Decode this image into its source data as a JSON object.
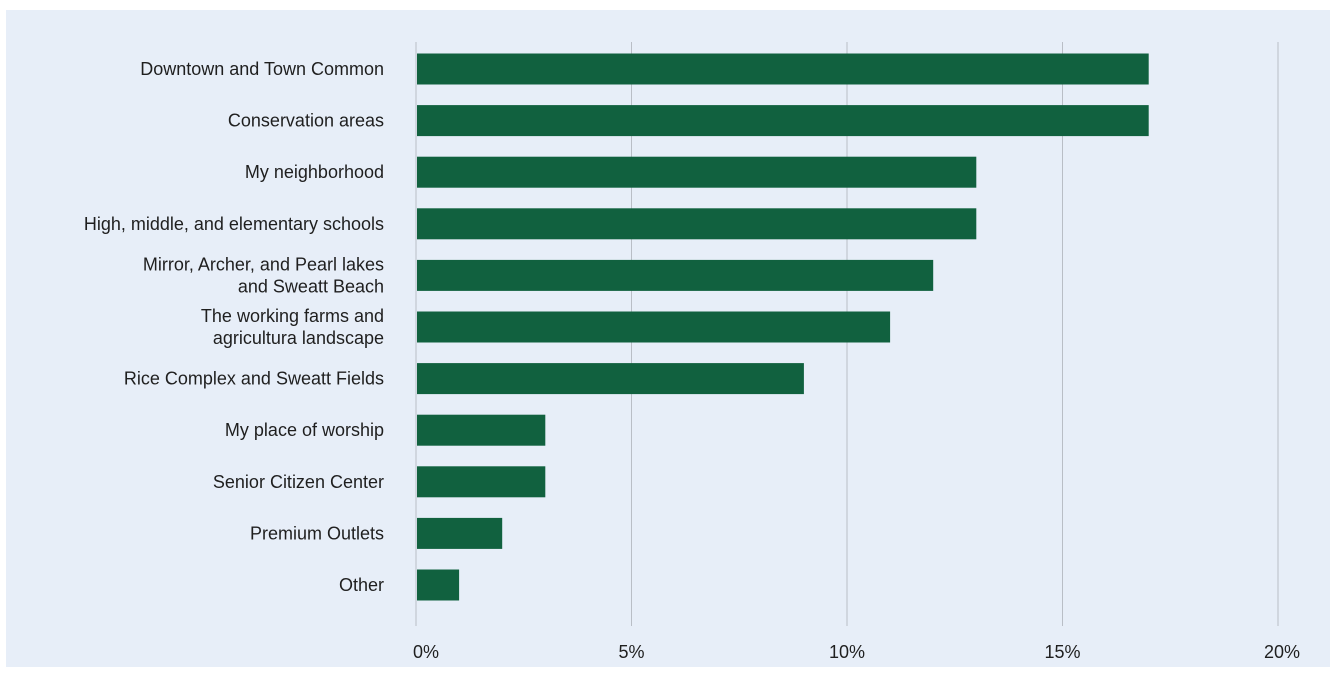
{
  "chart_data": {
    "type": "bar",
    "orientation": "horizontal",
    "title": "",
    "xlabel": "",
    "ylabel": "",
    "categories": [
      [
        "Downtown and Town Common"
      ],
      [
        "Conservation areas"
      ],
      [
        "My neighborhood"
      ],
      [
        "High, middle, and elementary schools"
      ],
      [
        "Mirror, Archer, and Pearl lakes",
        "and Sweatt Beach"
      ],
      [
        "The working farms and",
        "agricultura landscape"
      ],
      [
        "Rice Complex and Sweatt Fields"
      ],
      [
        "My place of worship"
      ],
      [
        "Senior Citizen Center"
      ],
      [
        "Premium Outlets"
      ],
      [
        "Other"
      ]
    ],
    "values": [
      17,
      17,
      13,
      13,
      12,
      11,
      9,
      3,
      3,
      2,
      1
    ],
    "unit": "%",
    "xlim": [
      0,
      20
    ],
    "ticks": [
      0,
      5,
      10,
      15,
      20
    ],
    "tick_labels": [
      "0%",
      "5%",
      "10%",
      "15%",
      "20%"
    ],
    "grid": "vertical",
    "legend": "none",
    "colors": {
      "bar": "#11613f",
      "background": "#e7eef8",
      "grid": "#b9bec6",
      "text": "#1f1f1f"
    }
  }
}
